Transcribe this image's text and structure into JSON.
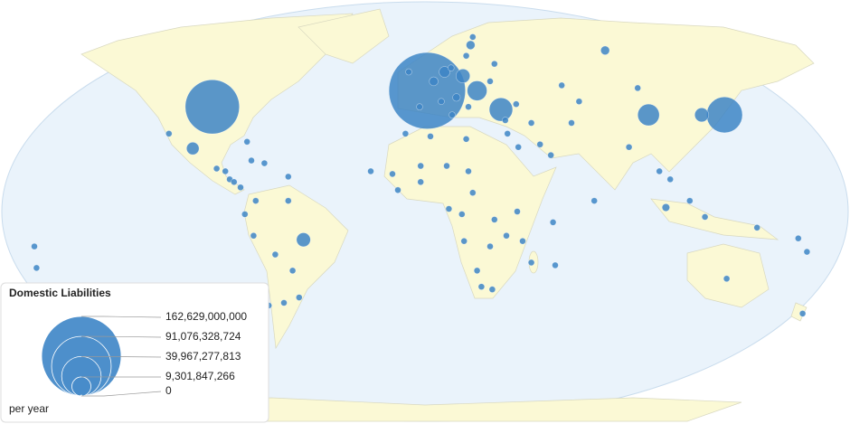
{
  "chart_data": {
    "type": "bubble-map",
    "title": "Domestic Liabilities",
    "unit_label": "per year",
    "color": "#3d85c6",
    "legend_ticks": [
      {
        "value": 162629000000,
        "label": "162,629,000,000"
      },
      {
        "value": 91076328724,
        "label": "91,076,328,724"
      },
      {
        "value": 39967277813,
        "label": "39,967,277,813"
      },
      {
        "value": 9301847266,
        "label": "9,301,847,266"
      },
      0
    ],
    "points": [
      {
        "lon": 1,
        "lat": 45,
        "value": 150000000000
      },
      {
        "lon": -98,
        "lat": 39,
        "value": 75000000000
      },
      {
        "lon": 138,
        "lat": 36,
        "value": 33000000000
      },
      {
        "lon": 35,
        "lat": 38,
        "value": 14000000000
      },
      {
        "lon": 103,
        "lat": 36,
        "value": 12000000000
      },
      {
        "lon": 24,
        "lat": 45,
        "value": 10000000000
      },
      {
        "lon": 127.5,
        "lat": 36,
        "value": 5000000000
      },
      {
        "lon": -56,
        "lat": -10.5,
        "value": 5000000000
      },
      {
        "lon": 17.5,
        "lat": 50.5,
        "value": 5000000000
      },
      {
        "lon": -107,
        "lat": 23.5,
        "value": 4000000000
      },
      {
        "lon": 9,
        "lat": 52,
        "value": 3000000000
      },
      {
        "lon": 83,
        "lat": 60,
        "value": 2000000000
      },
      {
        "lon": 21,
        "lat": 62,
        "value": 2000000000
      },
      {
        "lon": 4,
        "lat": 48.5,
        "value": 2000000000
      },
      {
        "lon": 111,
        "lat": 1.5,
        "value": 1500000000
      },
      {
        "lon": 14.5,
        "lat": 42.5,
        "value": 1500000000
      },
      {
        "lon": -118,
        "lat": 29,
        "value": 1000000000
      },
      {
        "lon": -82,
        "lat": 26,
        "value": 1000000000
      },
      {
        "lon": -80,
        "lat": 19,
        "value": 1000000000
      },
      {
        "lon": -74,
        "lat": 18,
        "value": 1000000000
      },
      {
        "lon": -63,
        "lat": 13,
        "value": 1000000000
      },
      {
        "lon": -96,
        "lat": 16,
        "value": 1000000000
      },
      {
        "lon": -92,
        "lat": 15,
        "value": 1000000000
      },
      {
        "lon": -90,
        "lat": 12,
        "value": 1000000000
      },
      {
        "lon": -88,
        "lat": 11,
        "value": 1000000000
      },
      {
        "lon": -85,
        "lat": 9,
        "value": 1000000000
      },
      {
        "lon": -78,
        "lat": 4,
        "value": 1000000000
      },
      {
        "lon": -63,
        "lat": 4,
        "value": 1000000000
      },
      {
        "lon": -83,
        "lat": -1,
        "value": 1000000000
      },
      {
        "lon": -79,
        "lat": -9,
        "value": 1000000000
      },
      {
        "lon": -69,
        "lat": -16,
        "value": 1000000000
      },
      {
        "lon": -61,
        "lat": -22,
        "value": 1000000000
      },
      {
        "lon": -58,
        "lat": -32,
        "value": 1000000000
      },
      {
        "lon": -65,
        "lat": -34,
        "value": 1000000000
      },
      {
        "lon": -72,
        "lat": -35,
        "value": 1000000000
      },
      {
        "lon": -25,
        "lat": 15,
        "value": 1000000000
      },
      {
        "lon": -15,
        "lat": 14,
        "value": 1000000000
      },
      {
        "lon": -12.5,
        "lat": 8,
        "value": 1000000000
      },
      {
        "lon": -2,
        "lat": 11,
        "value": 1000000000
      },
      {
        "lon": -2,
        "lat": 17,
        "value": 1000000000
      },
      {
        "lon": 10,
        "lat": 17,
        "value": 1000000000
      },
      {
        "lon": 20,
        "lat": 15,
        "value": 1000000000
      },
      {
        "lon": 22,
        "lat": 7,
        "value": 1000000000
      },
      {
        "lon": 11,
        "lat": 1,
        "value": 1000000000
      },
      {
        "lon": 17,
        "lat": -1,
        "value": 1000000000
      },
      {
        "lon": 32,
        "lat": -3,
        "value": 1000000000
      },
      {
        "lon": 42.5,
        "lat": 0,
        "value": 1000000000
      },
      {
        "lon": 37.5,
        "lat": -9,
        "value": 1000000000
      },
      {
        "lon": 45,
        "lat": -11,
        "value": 1000000000
      },
      {
        "lon": 30,
        "lat": -13,
        "value": 1000000000
      },
      {
        "lon": 18,
        "lat": -11,
        "value": 1000000000
      },
      {
        "lon": 24,
        "lat": -22,
        "value": 1000000000
      },
      {
        "lon": 26,
        "lat": -28,
        "value": 1000000000
      },
      {
        "lon": 31,
        "lat": -29,
        "value": 1000000000
      },
      {
        "lon": 49,
        "lat": -19,
        "value": 1000000000
      },
      {
        "lon": 60,
        "lat": -20,
        "value": 1000000000
      },
      {
        "lon": 59,
        "lat": -4,
        "value": 1000000000
      },
      {
        "lon": 78,
        "lat": 4,
        "value": 1000000000
      },
      {
        "lon": 94,
        "lat": 24,
        "value": 1000000000
      },
      {
        "lon": 67.5,
        "lat": 33,
        "value": 1000000000
      },
      {
        "lon": 71,
        "lat": 41,
        "value": 1000000000
      },
      {
        "lon": 63,
        "lat": 47,
        "value": 1000000000
      },
      {
        "lon": 98,
        "lat": 46,
        "value": 1000000000
      },
      {
        "lon": 108,
        "lat": 15,
        "value": 1000000000
      },
      {
        "lon": 113,
        "lat": 12,
        "value": 1000000000
      },
      {
        "lon": 122,
        "lat": 4,
        "value": 1000000000
      },
      {
        "lon": 129,
        "lat": -2,
        "value": 1000000000
      },
      {
        "lon": 139,
        "lat": -25,
        "value": 1000000000
      },
      {
        "lon": 153,
        "lat": -6,
        "value": 1000000000
      },
      {
        "lon": 172,
        "lat": -10,
        "value": 1000000000
      },
      {
        "lon": 176,
        "lat": -15,
        "value": 1000000000
      },
      {
        "lon": 174,
        "lat": -38,
        "value": 1000000000
      },
      {
        "lon": -180,
        "lat": -13,
        "value": 1000000000
      },
      {
        "lon": -179,
        "lat": -21,
        "value": 1000000000
      },
      {
        "lon": -9,
        "lat": 29,
        "value": 1000000000
      },
      {
        "lon": 2.5,
        "lat": 28,
        "value": 1000000000
      },
      {
        "lon": 19,
        "lat": 27,
        "value": 1000000000
      },
      {
        "lon": 38,
        "lat": 29,
        "value": 1000000000
      },
      {
        "lon": 43,
        "lat": 24,
        "value": 1000000000
      },
      {
        "lon": 53,
        "lat": 25,
        "value": 1000000000
      },
      {
        "lon": 58,
        "lat": 21,
        "value": 1000000000
      },
      {
        "lon": 49,
        "lat": 33,
        "value": 1000000000
      },
      {
        "lon": 42,
        "lat": 40,
        "value": 1000000000
      },
      {
        "lon": 37,
        "lat": 34,
        "value": 1000000000
      },
      {
        "lon": 20,
        "lat": 39,
        "value": 1000000000
      },
      {
        "lon": 12.5,
        "lat": 36,
        "value": 1000000000
      },
      {
        "lon": -2.5,
        "lat": 39,
        "value": 1000000000
      },
      {
        "lon": -7.5,
        "lat": 52,
        "value": 1000000000
      },
      {
        "lon": 12,
        "lat": 53.5,
        "value": 1000000000
      },
      {
        "lon": 22,
        "lat": 65,
        "value": 1000000000
      },
      {
        "lon": 19,
        "lat": 58,
        "value": 1000000000
      },
      {
        "lon": 32,
        "lat": 55,
        "value": 1000000000
      },
      {
        "lon": 30,
        "lat": 48.5,
        "value": 1000000000
      },
      {
        "lon": 7.5,
        "lat": 41,
        "value": 1000000000
      }
    ]
  }
}
